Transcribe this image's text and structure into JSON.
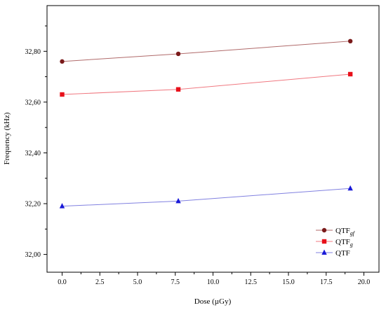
{
  "chart_data": {
    "type": "line",
    "title": "",
    "xlabel": "Dose (µGy)",
    "ylabel": "Frequency (kHz)",
    "xlim": [
      -1,
      21
    ],
    "ylim": [
      31.93,
      32.98
    ],
    "x_ticks": [
      0,
      2.5,
      5,
      7.5,
      10,
      12.5,
      15,
      17.5,
      20
    ],
    "x_tick_labels": [
      "0.0",
      "2.5",
      "5.0",
      "7.5",
      "10.0",
      "12.5",
      "15.0",
      "17.5",
      "20.0"
    ],
    "y_ticks": [
      32.0,
      32.2,
      32.4,
      32.6,
      32.8
    ],
    "y_tick_labels": [
      "32,00",
      "32,20",
      "32,40",
      "32,60",
      "32,80"
    ],
    "grid": false,
    "legend_position": "bottom-right",
    "series": [
      {
        "name": "QTF",
        "name_subscript": "gf",
        "color": "#7a1a1a",
        "line_color": "#b06a6a",
        "marker": "circle",
        "x": [
          0,
          7.7,
          19.1
        ],
        "y": [
          32.76,
          32.79,
          32.84
        ]
      },
      {
        "name": "QTF",
        "name_subscript": "g",
        "color": "#e8101a",
        "line_color": "#f07880",
        "marker": "square",
        "x": [
          0,
          7.7,
          19.1
        ],
        "y": [
          32.63,
          32.65,
          32.71
        ]
      },
      {
        "name": "QTF",
        "name_subscript": "",
        "color": "#1a1ad8",
        "line_color": "#8080e0",
        "marker": "triangle",
        "x": [
          0,
          7.7,
          19.1
        ],
        "y": [
          32.19,
          32.21,
          32.26
        ]
      }
    ]
  }
}
